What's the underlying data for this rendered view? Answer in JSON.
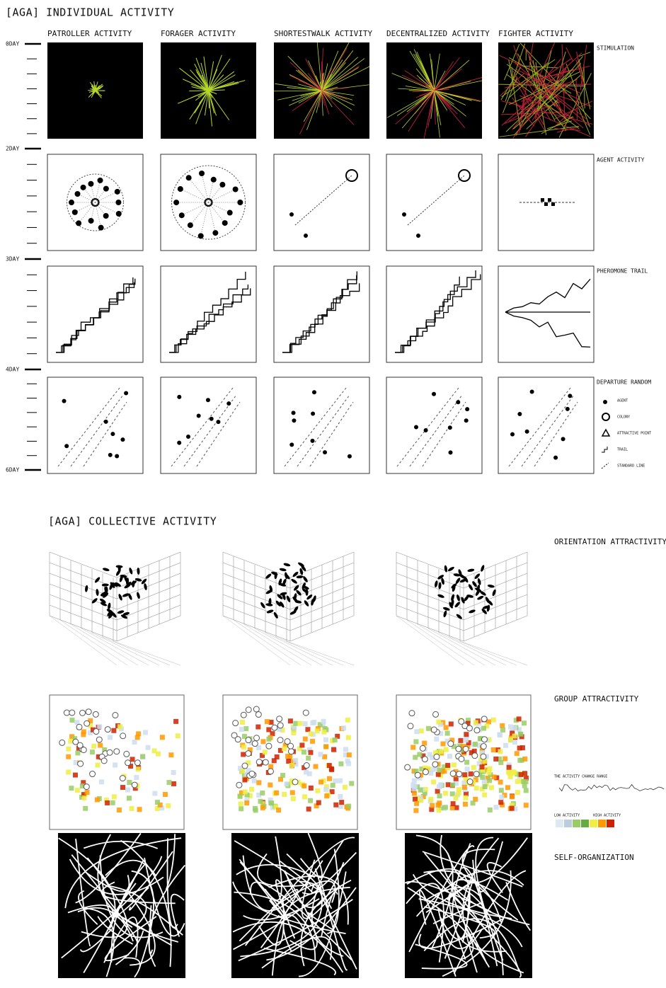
{
  "header": {
    "title": "[AGA] INDIVIDUAL ACTIVITY"
  },
  "columns": [
    "PATROLLER ACTIVITY",
    "FORAGER ACTIVITY",
    "SHORTESTWALK ACTIVITY",
    "DECENTRALIZED ACTIVITY",
    "FIGHTER ACTIVITY"
  ],
  "rows": [
    "STIMULATION",
    "AGENT ACTIVITY",
    "PHEROMONE TRAIL",
    "DEPARTURE RANDOM"
  ],
  "days": [
    "0DAY",
    "2DAY",
    "3DAY",
    "4DAY",
    "6DAY"
  ],
  "legend": [
    "AGENT",
    "COLONY",
    "ATTRACTIVE POINT",
    "TRAIL",
    "STANDARD LINE"
  ],
  "collective": {
    "title": "[AGA] COLLECTIVE ACTIVITY",
    "rows": [
      "ORIENTATION ATTRACTIVITY",
      "GROUP ATTRACTIVITY",
      "SELF-ORGANIZATION"
    ],
    "range_label": "THE ACTIVITY CHANGE RANGE",
    "low_label": "LOW ACTIVITY",
    "high_label": "HIGH ACTIVITY"
  }
}
